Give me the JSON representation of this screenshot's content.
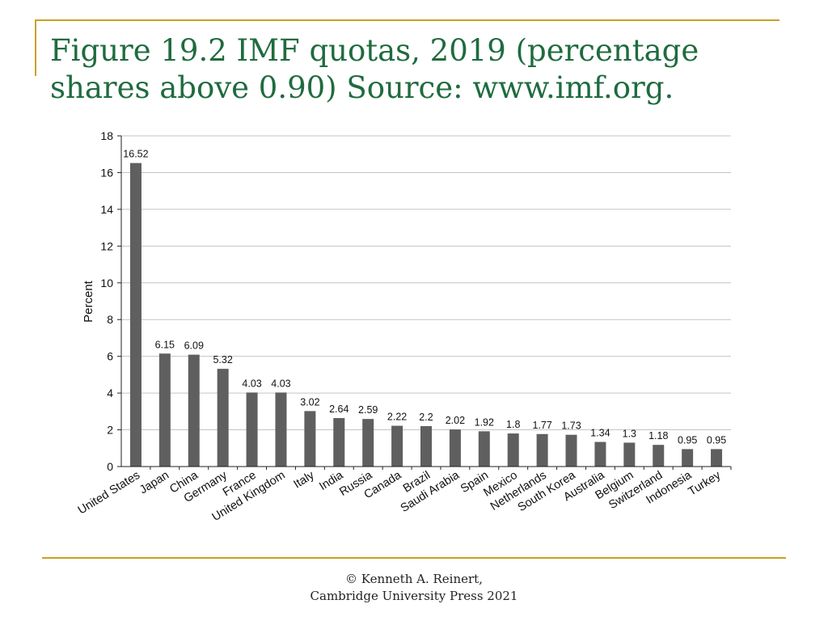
{
  "slide": {
    "title": "Figure 19.2  IMF quotas, 2019 (percentage shares above 0.90) Source: www.imf.org.",
    "footer_line1": "© Kenneth A. Reinert,",
    "footer_line2": "Cambridge University Press 2021",
    "accent_color": "#c8a220",
    "title_color": "#1f6b3f"
  },
  "chart_data": {
    "type": "bar",
    "title": "",
    "xlabel": "",
    "ylabel": "Percent",
    "ylim": [
      0,
      18
    ],
    "yticks": [
      0,
      2,
      4,
      6,
      8,
      10,
      12,
      14,
      16,
      18
    ],
    "grid": true,
    "bar_color": "#5f5f5f",
    "categories": [
      "United States",
      "Japan",
      "China",
      "Germany",
      "France",
      "United Kingdom",
      "Italy",
      "India",
      "Russia",
      "Canada",
      "Brazil",
      "Saudi Arabia",
      "Spain",
      "Mexico",
      "Netherlands",
      "South Korea",
      "Australia",
      "Belgium",
      "Switzerland",
      "Indonesia",
      "Turkey"
    ],
    "values": [
      16.52,
      6.15,
      6.09,
      5.32,
      4.03,
      4.03,
      3.02,
      2.64,
      2.59,
      2.22,
      2.2,
      2.02,
      1.92,
      1.8,
      1.77,
      1.73,
      1.34,
      1.3,
      1.18,
      0.95,
      0.95
    ],
    "value_labels": [
      "16.52",
      "6.15",
      "6.09",
      "5.32",
      "4.03",
      "4.03",
      "3.02",
      "2.64",
      "2.59",
      "2.22",
      "2.2",
      "2.02",
      "1.92",
      "1.8",
      "1.77",
      "1.73",
      "1.34",
      "1.3",
      "1.18",
      "0.95",
      "0.95"
    ]
  }
}
